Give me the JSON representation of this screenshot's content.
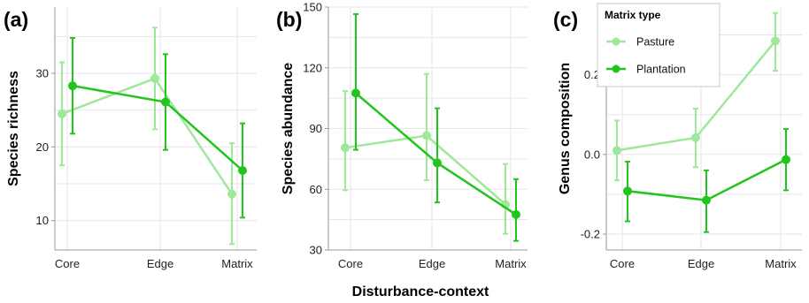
{
  "colors": {
    "pasture": "#9fe89a",
    "plantation": "#22c51e",
    "grid": "#e6e6e6",
    "axis": "#999999"
  },
  "shared_xlabel": "Disturbance-context",
  "legend": {
    "title": "Matrix type",
    "entries": [
      "Pasture",
      "Plantation"
    ]
  },
  "chart_data": [
    {
      "type": "line",
      "panel": "(a)",
      "ylabel": "Species richness",
      "categories": [
        "Core",
        "Edge",
        "Matrix"
      ],
      "ylim": [
        6,
        39
      ],
      "yticks": [
        10,
        20,
        30
      ],
      "grid": true,
      "series": [
        {
          "name": "Pasture",
          "values": [
            24.5,
            29.3,
            13.6
          ],
          "lower": [
            17.5,
            22.4,
            6.8
          ],
          "upper": [
            31.5,
            36.2,
            20.5
          ]
        },
        {
          "name": "Plantation",
          "values": [
            28.3,
            26.1,
            16.8
          ],
          "lower": [
            21.8,
            19.6,
            10.4
          ],
          "upper": [
            34.8,
            32.6,
            23.2
          ]
        }
      ]
    },
    {
      "type": "line",
      "panel": "(b)",
      "ylabel": "Species abundance",
      "categories": [
        "Core",
        "Edge",
        "Matrix"
      ],
      "ylim": [
        30,
        150
      ],
      "yticks": [
        30,
        60,
        90,
        120,
        150
      ],
      "grid": true,
      "series": [
        {
          "name": "Pasture",
          "values": [
            80.5,
            86.5,
            52.5
          ],
          "lower": [
            59.5,
            64.5,
            38.0
          ],
          "upper": [
            108.5,
            117.0,
            72.5
          ]
        },
        {
          "name": "Plantation",
          "values": [
            107.5,
            73.0,
            47.5
          ],
          "lower": [
            79.5,
            53.5,
            34.5
          ],
          "upper": [
            146.5,
            100.0,
            65.0
          ]
        }
      ]
    },
    {
      "type": "line",
      "panel": "(c)",
      "ylabel": "Genus composition",
      "categories": [
        "Core",
        "Edge",
        "Matrix"
      ],
      "ylim": [
        -0.24,
        0.37
      ],
      "yticks": [
        -0.2,
        0.0,
        0.2
      ],
      "ytick_labels": [
        "-0.2",
        "0.0",
        "0.2"
      ],
      "grid": true,
      "legend_position": "top-right",
      "series": [
        {
          "name": "Pasture",
          "values": [
            0.01,
            0.042,
            0.285
          ],
          "lower": [
            -0.065,
            -0.032,
            0.21
          ],
          "upper": [
            0.085,
            0.115,
            0.355
          ]
        },
        {
          "name": "Plantation",
          "values": [
            -0.092,
            -0.115,
            -0.013
          ],
          "lower": [
            -0.168,
            -0.195,
            -0.09
          ],
          "upper": [
            -0.018,
            -0.04,
            0.064
          ]
        }
      ]
    }
  ]
}
